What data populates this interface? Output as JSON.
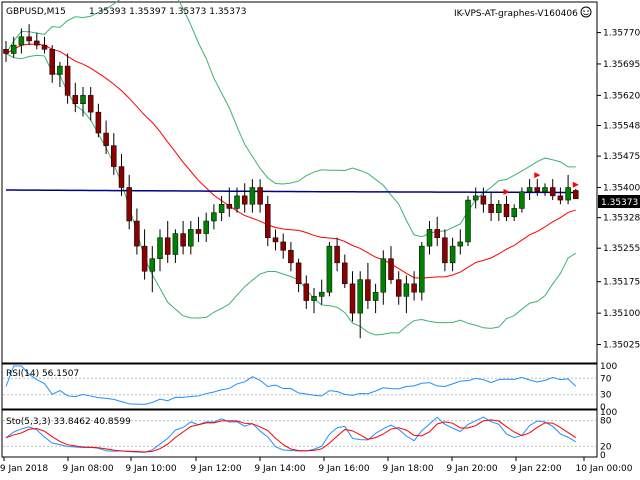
{
  "header": {
    "symbol_tf": "GBPUSD,M15",
    "ohlc": "1.35393 1.35397 1.35373 1.35373",
    "indicator_name": "IK-VPS-AT-graphes-V160406"
  },
  "rsi_label": "RSI(14) 56.1507",
  "stoch_label": "Sto(5,3,3) 33.8462 40.8599",
  "price_labels": [
    "1.35770",
    "1.35695",
    "1.35620",
    "1.35548",
    "1.35475",
    "1.35400",
    "1.35328",
    "1.35255",
    "1.35175",
    "1.35100",
    "1.35025"
  ],
  "current_price": "1.35373",
  "rsi_levels": [
    "100",
    "70",
    "30",
    "0"
  ],
  "stoch_levels": [
    "100",
    "80",
    "20",
    "0"
  ],
  "time_labels": [
    "9 Jan 2018",
    "9 Jan 08:00",
    "9 Jan 10:00",
    "9 Jan 12:00",
    "9 Jan 14:00",
    "9 Jan 16:00",
    "9 Jan 18:00",
    "9 Jan 20:00",
    "9 Jan 22:00",
    "10 Jan 00:00"
  ],
  "colors": {
    "bull": "#008000",
    "bear": "#8b0000",
    "ma_fast": "#ff0000",
    "ma_slow": "#00008b",
    "bands": "#3cb371",
    "rsi": "#1e90ff",
    "stoch_main": "#1e90ff",
    "stoch_signal": "#ff0000",
    "current_price_bg": "#000000"
  },
  "chart_data": {
    "type": "candlestick",
    "timeframe": "M15",
    "ylim": [
      1.35,
      1.358
    ],
    "candles": [
      [
        1.3573,
        1.3575,
        1.357,
        1.3572
      ],
      [
        1.3572,
        1.3576,
        1.3571,
        1.3574
      ],
      [
        1.3574,
        1.3578,
        1.3572,
        1.3576
      ],
      [
        1.3576,
        1.3579,
        1.3574,
        1.3575
      ],
      [
        1.3575,
        1.3577,
        1.3573,
        1.3574
      ],
      [
        1.3574,
        1.3576,
        1.3572,
        1.3573
      ],
      [
        1.3573,
        1.3574,
        1.3565,
        1.3567
      ],
      [
        1.3567,
        1.357,
        1.3564,
        1.3569
      ],
      [
        1.3569,
        1.3572,
        1.356,
        1.3562
      ],
      [
        1.3562,
        1.3565,
        1.3558,
        1.356
      ],
      [
        1.356,
        1.3564,
        1.3557,
        1.3562
      ],
      [
        1.3562,
        1.3564,
        1.3556,
        1.3558
      ],
      [
        1.3558,
        1.356,
        1.3552,
        1.3553
      ],
      [
        1.3553,
        1.3556,
        1.3548,
        1.355
      ],
      [
        1.355,
        1.3553,
        1.3543,
        1.3545
      ],
      [
        1.3545,
        1.3548,
        1.3538,
        1.354
      ],
      [
        1.354,
        1.3543,
        1.353,
        1.3532
      ],
      [
        1.3532,
        1.3535,
        1.3524,
        1.3526
      ],
      [
        1.3526,
        1.353,
        1.3518,
        1.352
      ],
      [
        1.352,
        1.3526,
        1.3515,
        1.3523
      ],
      [
        1.3523,
        1.353,
        1.352,
        1.3528
      ],
      [
        1.3528,
        1.3532,
        1.3522,
        1.3524
      ],
      [
        1.3524,
        1.353,
        1.3522,
        1.3529
      ],
      [
        1.3529,
        1.3532,
        1.3524,
        1.3526
      ],
      [
        1.3526,
        1.3532,
        1.3524,
        1.353
      ],
      [
        1.353,
        1.3533,
        1.3527,
        1.3529
      ],
      [
        1.3529,
        1.3534,
        1.3527,
        1.3532
      ],
      [
        1.3532,
        1.3536,
        1.353,
        1.3534
      ],
      [
        1.3534,
        1.3538,
        1.3532,
        1.3536
      ],
      [
        1.3536,
        1.354,
        1.3533,
        1.3535
      ],
      [
        1.3535,
        1.354,
        1.3534,
        1.3538
      ],
      [
        1.3538,
        1.3541,
        1.3534,
        1.3536
      ],
      [
        1.3536,
        1.3542,
        1.3534,
        1.354
      ],
      [
        1.354,
        1.3542,
        1.3534,
        1.3536
      ],
      [
        1.3536,
        1.3538,
        1.3526,
        1.3528
      ],
      [
        1.3528,
        1.353,
        1.3525,
        1.3527
      ],
      [
        1.3527,
        1.3529,
        1.3523,
        1.3525
      ],
      [
        1.3525,
        1.3527,
        1.352,
        1.3522
      ],
      [
        1.3522,
        1.3523,
        1.3515,
        1.3517
      ],
      [
        1.3517,
        1.3519,
        1.3511,
        1.3513
      ],
      [
        1.3513,
        1.3516,
        1.351,
        1.3514
      ],
      [
        1.3514,
        1.3518,
        1.3512,
        1.3515
      ],
      [
        1.3515,
        1.3527,
        1.3514,
        1.3526
      ],
      [
        1.3526,
        1.3528,
        1.352,
        1.3522
      ],
      [
        1.3522,
        1.3524,
        1.3516,
        1.3517
      ],
      [
        1.3517,
        1.352,
        1.3508,
        1.351
      ],
      [
        1.351,
        1.352,
        1.3504,
        1.3518
      ],
      [
        1.3518,
        1.3522,
        1.3511,
        1.3513
      ],
      [
        1.3513,
        1.3517,
        1.351,
        1.3515
      ],
      [
        1.3515,
        1.3525,
        1.3512,
        1.3523
      ],
      [
        1.3523,
        1.3526,
        1.3517,
        1.3518
      ],
      [
        1.3518,
        1.352,
        1.3512,
        1.3514
      ],
      [
        1.3514,
        1.3519,
        1.351,
        1.3517
      ],
      [
        1.3517,
        1.352,
        1.3513,
        1.3515
      ],
      [
        1.3515,
        1.3527,
        1.3513,
        1.3526
      ],
      [
        1.3526,
        1.3532,
        1.3524,
        1.353
      ],
      [
        1.353,
        1.3533,
        1.3526,
        1.3528
      ],
      [
        1.3528,
        1.353,
        1.352,
        1.3522
      ],
      [
        1.3522,
        1.3528,
        1.352,
        1.3526
      ],
      [
        1.3526,
        1.353,
        1.3524,
        1.3527
      ],
      [
        1.3527,
        1.3538,
        1.3526,
        1.3537
      ],
      [
        1.3537,
        1.354,
        1.3535,
        1.3538
      ],
      [
        1.3538,
        1.354,
        1.3534,
        1.3536
      ],
      [
        1.3536,
        1.3539,
        1.3532,
        1.3534
      ],
      [
        1.3534,
        1.3537,
        1.3532,
        1.3536
      ],
      [
        1.3536,
        1.3538,
        1.3532,
        1.3533
      ],
      [
        1.3533,
        1.3536,
        1.3532,
        1.3535
      ],
      [
        1.3535,
        1.354,
        1.3534,
        1.3539
      ],
      [
        1.3539,
        1.3542,
        1.3537,
        1.354
      ],
      [
        1.354,
        1.3542,
        1.3538,
        1.3539
      ],
      [
        1.3539,
        1.3541,
        1.3538,
        1.354
      ],
      [
        1.354,
        1.3542,
        1.3537,
        1.3538
      ],
      [
        1.3538,
        1.354,
        1.3536,
        1.3537
      ],
      [
        1.3537,
        1.3543,
        1.3536,
        1.354
      ],
      [
        1.35393,
        1.35397,
        1.35373,
        1.35373
      ]
    ],
    "rsi": {
      "name": "RSI(14)",
      "last": 56.1507,
      "levels": [
        70,
        30
      ],
      "ylim": [
        0,
        100
      ]
    },
    "stochastic": {
      "name": "Sto(5,3,3)",
      "main_last": 33.8462,
      "signal_last": 40.8599,
      "levels": [
        80,
        20
      ],
      "ylim": [
        0,
        100
      ]
    }
  }
}
